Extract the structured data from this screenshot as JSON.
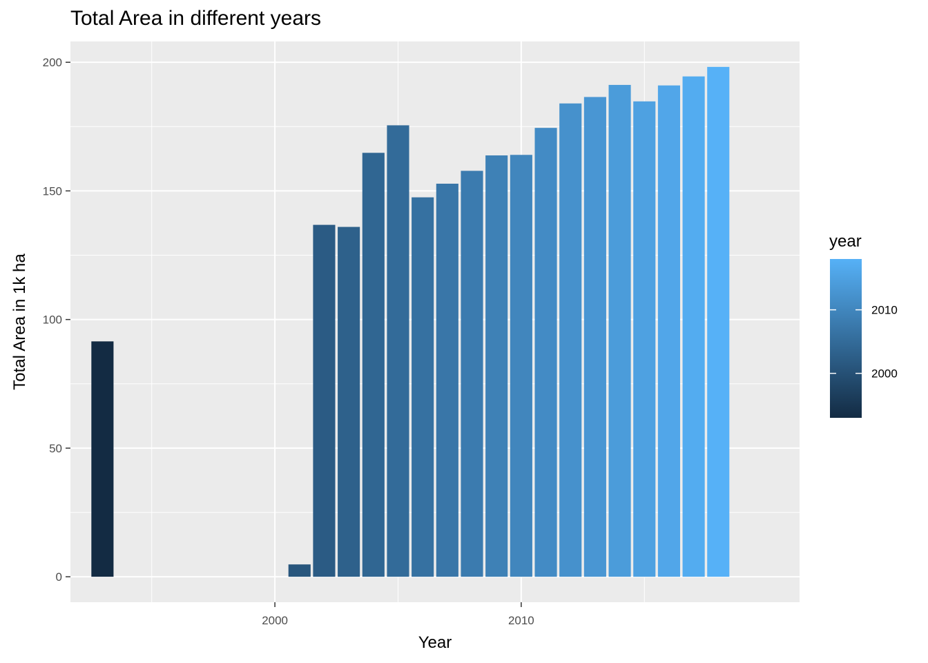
{
  "chart_data": {
    "type": "bar",
    "title": "Total Area in different years",
    "xlabel": "Year",
    "ylabel": "Total Area in 1k ha",
    "x": [
      1993,
      2001,
      2002,
      2003,
      2004,
      2005,
      2006,
      2007,
      2008,
      2009,
      2010,
      2011,
      2012,
      2013,
      2014,
      2015,
      2016,
      2017,
      2018
    ],
    "values": [
      91.5,
      4.8,
      136.8,
      136.0,
      164.8,
      175.5,
      147.5,
      152.8,
      157.8,
      163.8,
      164.0,
      174.5,
      184.0,
      186.5,
      191.2,
      184.8,
      191.0,
      194.5,
      198.2
    ],
    "xlim": [
      1991.7,
      2021.3
    ],
    "ylim": [
      -9.9,
      208.1
    ],
    "x_ticks": [
      "2000",
      "2010"
    ],
    "y_ticks": [
      "0",
      "50",
      "100",
      "150",
      "200"
    ],
    "grid": true,
    "legend": {
      "title": "year",
      "placement": "right",
      "type": "colorbar",
      "range": [
        1993,
        2018
      ],
      "ticks": [
        "2000",
        "2010"
      ],
      "color_low": "#132b43",
      "color_high": "#56b1f7"
    },
    "panel_background": "#ebebeb",
    "grid_color": "#ffffff"
  }
}
